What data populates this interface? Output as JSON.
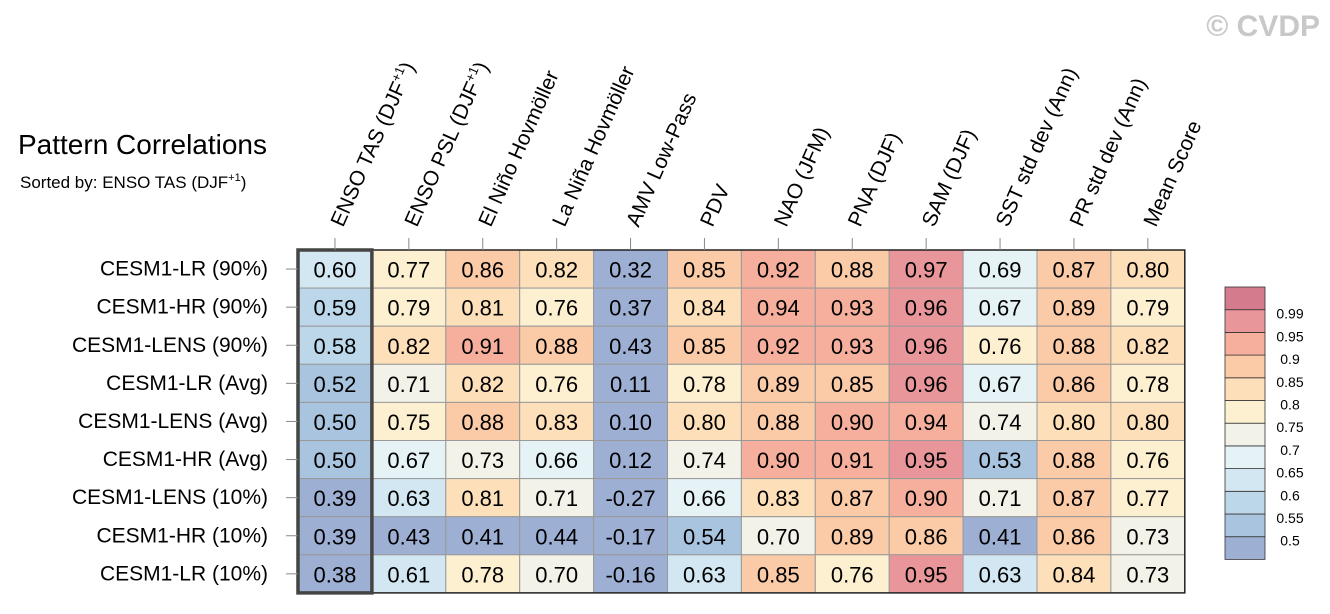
{
  "watermark": "© CVDP",
  "chart_data": {
    "type": "heatmap",
    "title": "Pattern Correlations",
    "subtitle": "Sorted by: ENSO TAS (DJF",
    "subtitle_sup": "+1",
    "subtitle_end": ")",
    "highlighted_column": 0,
    "columns": [
      {
        "label": "ENSO TAS (DJF",
        "sup": "+1",
        "end": ")"
      },
      {
        "label": "ENSO PSL (DJF",
        "sup": "+1",
        "end": ")"
      },
      {
        "label": "El Niño Hovmöller"
      },
      {
        "label": "La Niña Hovmöller"
      },
      {
        "label": "AMV Low-Pass"
      },
      {
        "label": "PDV"
      },
      {
        "label": "NAO (JFM)"
      },
      {
        "label": "PNA (DJF)"
      },
      {
        "label": "SAM (DJF)"
      },
      {
        "label": "SST std dev (Ann)"
      },
      {
        "label": "PR std dev (Ann)"
      },
      {
        "label": "Mean Score"
      }
    ],
    "rows": [
      "CESM1-LR (90%)",
      "CESM1-HR (90%)",
      "CESM1-LENS (90%)",
      "CESM1-LR (Avg)",
      "CESM1-LENS (Avg)",
      "CESM1-HR (Avg)",
      "CESM1-LENS (10%)",
      "CESM1-HR (10%)",
      "CESM1-LR (10%)"
    ],
    "values": [
      [
        "0.60",
        "0.77",
        "0.86",
        "0.82",
        "0.32",
        "0.85",
        "0.92",
        "0.88",
        "0.97",
        "0.69",
        "0.87",
        "0.80"
      ],
      [
        "0.59",
        "0.79",
        "0.81",
        "0.76",
        "0.37",
        "0.84",
        "0.94",
        "0.93",
        "0.96",
        "0.67",
        "0.89",
        "0.79"
      ],
      [
        "0.58",
        "0.82",
        "0.91",
        "0.88",
        "0.43",
        "0.85",
        "0.92",
        "0.93",
        "0.96",
        "0.76",
        "0.88",
        "0.82"
      ],
      [
        "0.52",
        "0.71",
        "0.82",
        "0.76",
        "0.11",
        "0.78",
        "0.89",
        "0.85",
        "0.96",
        "0.67",
        "0.86",
        "0.78"
      ],
      [
        "0.50",
        "0.75",
        "0.88",
        "0.83",
        "0.10",
        "0.80",
        "0.88",
        "0.90",
        "0.94",
        "0.74",
        "0.80",
        "0.80"
      ],
      [
        "0.50",
        "0.67",
        "0.73",
        "0.66",
        "0.12",
        "0.74",
        "0.90",
        "0.91",
        "0.95",
        "0.53",
        "0.88",
        "0.76"
      ],
      [
        "0.39",
        "0.63",
        "0.81",
        "0.71",
        "-0.27",
        "0.66",
        "0.83",
        "0.87",
        "0.90",
        "0.71",
        "0.87",
        "0.77"
      ],
      [
        "0.39",
        "0.43",
        "0.41",
        "0.44",
        "-0.17",
        "0.54",
        "0.70",
        "0.89",
        "0.86",
        "0.41",
        "0.86",
        "0.73"
      ],
      [
        "0.38",
        "0.61",
        "0.78",
        "0.70",
        "-0.16",
        "0.63",
        "0.85",
        "0.76",
        "0.95",
        "0.63",
        "0.84",
        "0.73"
      ]
    ],
    "colorbar": {
      "levels": [
        "0.5",
        "0.55",
        "0.6",
        "0.65",
        "0.7",
        "0.75",
        "0.8",
        "0.85",
        "0.9",
        "0.95",
        "0.99"
      ],
      "colors": [
        "#9eafd4",
        "#a9c4de",
        "#bcd7ea",
        "#d2e7f1",
        "#e5f2f6",
        "#f3f2e8",
        "#fdf0d0",
        "#fde0b9",
        "#fbcaa6",
        "#f5af9c",
        "#e9969b",
        "#d57b8e"
      ]
    }
  }
}
